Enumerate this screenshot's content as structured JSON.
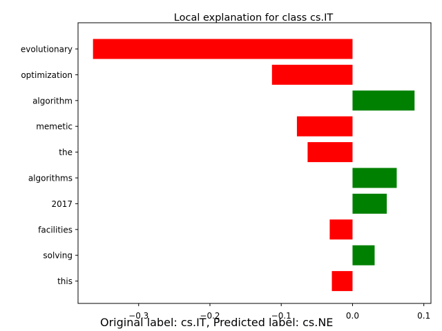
{
  "chart_data": {
    "type": "bar",
    "orientation": "horizontal",
    "title": "Local explanation for class cs.IT",
    "categories": [
      "evolutionary",
      "optimization",
      "algorithm",
      "memetic",
      "the",
      "algorithms",
      "2017",
      "facilities",
      "solving",
      "this"
    ],
    "values": [
      -0.364,
      -0.113,
      0.087,
      -0.078,
      -0.063,
      0.062,
      0.048,
      -0.032,
      0.031,
      -0.029
    ],
    "xlim": [
      -0.385,
      0.11
    ],
    "xticks": [
      -0.3,
      -0.2,
      -0.1,
      0.0,
      0.1
    ],
    "xtick_labels": [
      "−0.3",
      "−0.2",
      "−0.1",
      "0.0",
      "0.1"
    ],
    "xlabel": "",
    "ylabel": "",
    "grid": false,
    "colors": {
      "negative": "#ff0000",
      "positive": "#008000",
      "axis": "#000000"
    }
  },
  "caption": "Original label: cs.IT, Predicted label: cs.NE"
}
